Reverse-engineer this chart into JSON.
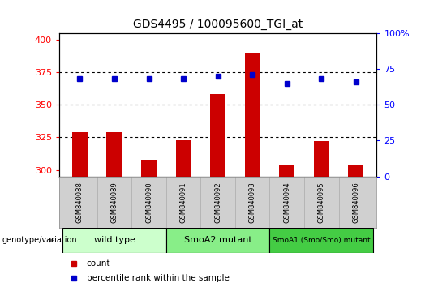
{
  "title": "GDS4495 / 100095600_TGI_at",
  "samples": [
    "GSM840088",
    "GSM840089",
    "GSM840090",
    "GSM840091",
    "GSM840092",
    "GSM840093",
    "GSM840094",
    "GSM840095",
    "GSM840096"
  ],
  "counts": [
    329,
    329,
    308,
    323,
    358,
    390,
    304,
    322,
    304
  ],
  "percentile_ranks": [
    68,
    68,
    68,
    68,
    70,
    71,
    65,
    68,
    66
  ],
  "ylim_left": [
    295,
    405
  ],
  "ylim_right": [
    0,
    100
  ],
  "yticks_left": [
    300,
    325,
    350,
    375,
    400
  ],
  "yticks_right": [
    0,
    25,
    50,
    75,
    100
  ],
  "ytick_right_labels": [
    "0",
    "25",
    "50",
    "75",
    "100%"
  ],
  "groups": [
    {
      "label": "wild type",
      "samples": [
        0,
        1,
        2
      ],
      "color": "#ccffcc"
    },
    {
      "label": "SmoA2 mutant",
      "samples": [
        3,
        4,
        5
      ],
      "color": "#88ee88"
    },
    {
      "label": "SmoA1 (Smo/Smo) mutant",
      "samples": [
        6,
        7,
        8
      ],
      "color": "#44cc44"
    }
  ],
  "bar_color": "#cc0000",
  "dot_color": "#0000cc",
  "bar_width": 0.45,
  "dotted_lines": [
    325,
    350,
    375
  ],
  "legend_items": [
    {
      "color": "#cc0000",
      "label": "count"
    },
    {
      "color": "#0000cc",
      "label": "percentile rank within the sample"
    }
  ]
}
